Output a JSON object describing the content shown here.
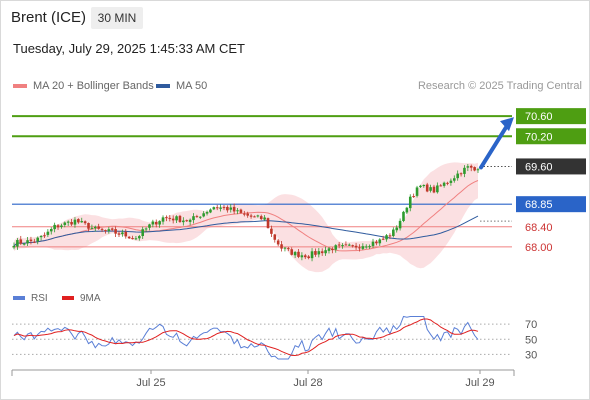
{
  "header": {
    "instrument": "Brent (ICE)",
    "timeframe": "30 MIN",
    "datetime": "Tuesday, July 29, 2025 1:45:33 AM CET"
  },
  "legend": {
    "ma20_label": "MA 20 + Bollinger Bands",
    "ma50_label": "MA 50",
    "credit": "Research © 2025 Trading Central"
  },
  "rsi_legend": {
    "rsi_label": "RSI",
    "ma_label": "9MA"
  },
  "colors": {
    "up": "#2e9b2e",
    "down": "#c0392b",
    "target": "#4e9e12",
    "ma20": "#f08080",
    "ma50": "#2f5b9e",
    "band": "#fadadd",
    "pivot": "#2a64c8",
    "support": "#cc3333",
    "rsi": "#5a7fd6",
    "rsi_ma": "#e02020"
  },
  "chart_data": {
    "type": "candlestick",
    "title": "Brent (ICE)",
    "timeframe": "30 MIN",
    "x_ticks": [
      "Jul 25",
      "Jul 28",
      "Jul 29"
    ],
    "ylim": [
      67.78,
      71.02
    ],
    "levels": [
      {
        "name": "target2",
        "value": 70.6,
        "label": "70.60",
        "style": "target"
      },
      {
        "name": "target1",
        "value": 70.2,
        "label": "70.20",
        "style": "target"
      },
      {
        "name": "last-price",
        "value": 69.6,
        "label": "69.60",
        "style": "last"
      },
      {
        "name": "pivot",
        "value": 68.85,
        "label": "68.85",
        "style": "pivot"
      },
      {
        "name": "support1",
        "value": 68.4,
        "label": "68.40",
        "style": "support"
      },
      {
        "name": "support2",
        "value": 68.0,
        "label": "68.00",
        "style": "support"
      }
    ],
    "rsi": {
      "levels": [
        70,
        50,
        30
      ],
      "ylim": [
        20,
        82
      ]
    }
  }
}
